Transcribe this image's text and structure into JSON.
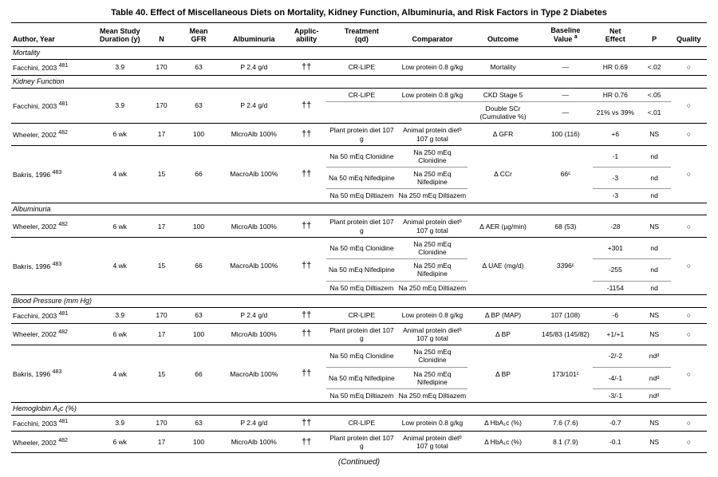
{
  "title": "Table 40.    Effect of Miscellaneous Diets on Mortality, Kidney Function, Albuminuria, and Risk Factors in Type 2 Diabetes",
  "continued": "(Continued)",
  "columns": [
    "Author, Year",
    "Mean Study Duration (y)",
    "N",
    "Mean GFR",
    "Albuminuria",
    "Applic-ability",
    "Treatment (qd)",
    "Comparator",
    "Outcome",
    "Baseline Value ",
    "Net Effect",
    "P",
    "Quality"
  ],
  "col_widths": [
    "90px",
    "60px",
    "32px",
    "50px",
    "72px",
    "44px",
    "78px",
    "78px",
    "78px",
    "60px",
    "50px",
    "36px",
    "40px"
  ],
  "baseline_super": "a",
  "sections": [
    {
      "name": "Mortality",
      "rows": [
        {
          "author": "Facchini, 2003 ",
          "ref": "481",
          "dur": "3.9",
          "n": "170",
          "gfr": "63",
          "alb": "P 2.4 g/d",
          "applic": "††",
          "cells": [
            {
              "treat": "CR-LIPE",
              "comp": "Low protein 0.8 g/kg",
              "out": "Mortality",
              "base": "—",
              "net": "HR 0.69",
              "p": "<.02",
              "q": "○"
            }
          ]
        }
      ]
    },
    {
      "name": "Kidney Function",
      "rows": [
        {
          "author": "Facchini, 2003 ",
          "ref": "481",
          "dur": "3.9",
          "n": "170",
          "gfr": "63",
          "alb": "P 2.4 g/d",
          "applic": "††",
          "cells": [
            {
              "treat": "CR-LIPE",
              "comp": "Low protein 0.8 g/kg",
              "out": "CKD Stage 5",
              "base": "—",
              "net": "HR 0.76",
              "p": "<.05",
              "q": "○",
              "sub_bottom": true
            },
            {
              "treat": "",
              "comp": "",
              "out": "Double SCr (Cumulative %)",
              "base": "—",
              "net": "21% vs 39%",
              "p": "<.01",
              "q": ""
            }
          ]
        },
        {
          "author": "Wheeler, 2002 ",
          "ref": "482",
          "dur": "6 wk",
          "n": "17",
          "gfr": "100",
          "alb": "MicroAlb 100%",
          "applic": "††",
          "cells": [
            {
              "treat": "Plant protein diet 107 g",
              "comp": "Animal protein dietᵇ 107 g total",
              "out": "Δ GFR",
              "base": "100 (116)",
              "net": "+6",
              "p": "NS",
              "q": "○"
            }
          ]
        },
        {
          "author": "Bakris, 1996 ",
          "ref": "483",
          "dur": "4 wk",
          "n": "15",
          "gfr": "66",
          "alb": "MacroAlb 100%",
          "applic": "††",
          "cells": [
            {
              "treat": "Na 50 mEq Clonidine",
              "comp": "Na 250 mEq Clonidine",
              "out": "Δ CCr",
              "base": "66ᶜ",
              "net": "-1",
              "p": "nd",
              "q": "○",
              "sub_bottom": true
            },
            {
              "treat": "Na 50 mEq Nifedipine",
              "comp": "Na 250 mEq Nifedipine",
              "out": "",
              "base": "",
              "net": "-3",
              "p": "nd",
              "q": "",
              "sub_bottom": true
            },
            {
              "treat": "Na 50 mEq Diltiazem",
              "comp": "Na 250 mEq Diltiazem",
              "out": "",
              "base": "",
              "net": "-3",
              "p": "nd",
              "q": ""
            }
          ]
        }
      ]
    },
    {
      "name": "Albuminuria",
      "rows": [
        {
          "author": "Wheeler, 2002 ",
          "ref": "482",
          "dur": "6 wk",
          "n": "17",
          "gfr": "100",
          "alb": "MicroAlb 100%",
          "applic": "††",
          "cells": [
            {
              "treat": "Plant protein diet 107 g",
              "comp": "Animal protein dietᵇ 107 g total",
              "out": "Δ AER (µg/min)",
              "base": "68 (53)",
              "net": "-28",
              "p": "NS",
              "q": "○"
            }
          ]
        },
        {
          "author": "Bakris, 1996 ",
          "ref": "483",
          "dur": "4 wk",
          "n": "15",
          "gfr": "66",
          "alb": "MacroAlb 100%",
          "applic": "††",
          "cells": [
            {
              "treat": "Na 50 mEq Clonidine",
              "comp": "Na 250 mEq Clonidine",
              "out": "Δ UAE (mg/d)",
              "base": "3396ᶜ",
              "net": "+301",
              "p": "nd",
              "q": "○",
              "sub_bottom": true
            },
            {
              "treat": "Na 50 mEq Nifedipine",
              "comp": "Na 250 mEq Nifedipine",
              "out": "",
              "base": "",
              "net": "-255",
              "p": "nd",
              "q": "",
              "sub_bottom": true
            },
            {
              "treat": "Na 50 mEq Diltiazem",
              "comp": "Na 250 mEq Diltiazem",
              "out": "",
              "base": "",
              "net": "-1154",
              "p": "nd",
              "q": ""
            }
          ]
        }
      ]
    },
    {
      "name": "Blood Pressure (mm Hg)",
      "rows": [
        {
          "author": "Facchini, 2003 ",
          "ref": "481",
          "dur": "3.9",
          "n": "170",
          "gfr": "63",
          "alb": "P 2.4 g/d",
          "applic": "††",
          "cells": [
            {
              "treat": "CR-LIPE",
              "comp": "Low protein 0.8 g/kg",
              "out": "Δ BP (MAP)",
              "base": "107 (108)",
              "net": "-6",
              "p": "NS",
              "q": "○"
            }
          ]
        },
        {
          "author": "Wheeler, 2002 ",
          "ref": "482",
          "dur": "6 wk",
          "n": "17",
          "gfr": "100",
          "alb": "MicroAlb 100%",
          "applic": "††",
          "cells": [
            {
              "treat": "Plant protein diet 107 g",
              "comp": "Animal protein dietᵇ 107 g total",
              "out": "Δ BP",
              "base": "145/83 (145/82)",
              "net": "+1/+1",
              "p": "NS",
              "q": "○"
            }
          ]
        },
        {
          "author": "Bakris, 1996 ",
          "ref": "483",
          "dur": "4 wk",
          "n": "15",
          "gfr": "66",
          "alb": "MacroAlb 100%",
          "applic": "††",
          "cells": [
            {
              "treat": "Na 50 mEq Clonidine",
              "comp": "Na 250 mEq Clonidine",
              "out": "Δ BP",
              "base": "173/101ᶜ",
              "net": "-2/-2",
              "p": "ndᵈ",
              "q": "○",
              "sub_bottom": true
            },
            {
              "treat": "Na 50 mEq Nifedipine",
              "comp": "Na 250 mEq Nifedipine",
              "out": "",
              "base": "",
              "net": "-4/-1",
              "p": "ndᵈ",
              "q": "",
              "sub_bottom": true
            },
            {
              "treat": "Na 50 mEq Diltiazem",
              "comp": "Na 250 mEq Diltiazem",
              "out": "",
              "base": "",
              "net": "-3/-1",
              "p": "ndᵈ",
              "q": ""
            }
          ]
        }
      ]
    },
    {
      "name": "Hemoglobin A₁c (%)",
      "rows": [
        {
          "author": "Facchini, 2003 ",
          "ref": "481",
          "dur": "3.9",
          "n": "170",
          "gfr": "63",
          "alb": "P 2.4 g/d",
          "applic": "††",
          "cells": [
            {
              "treat": "CR-LIPE",
              "comp": "Low protein 0.8 g/kg",
              "out": "Δ HbA₁c (%)",
              "base": "7.6 (7.6)",
              "net": "-0.7",
              "p": "NS",
              "q": "○"
            }
          ]
        },
        {
          "author": "Wheeler, 2002 ",
          "ref": "482",
          "dur": "6 wk",
          "n": "17",
          "gfr": "100",
          "alb": "MicroAlb 100%",
          "applic": "††",
          "cells": [
            {
              "treat": "Plant protein diet 107 g",
              "comp": "Animal protein dietᵇ 107 g total",
              "out": "Δ HbA₁c (%)",
              "base": "8.1 (7.9)",
              "net": "-0.1",
              "p": "NS",
              "q": "○"
            }
          ],
          "last": true
        }
      ]
    }
  ]
}
